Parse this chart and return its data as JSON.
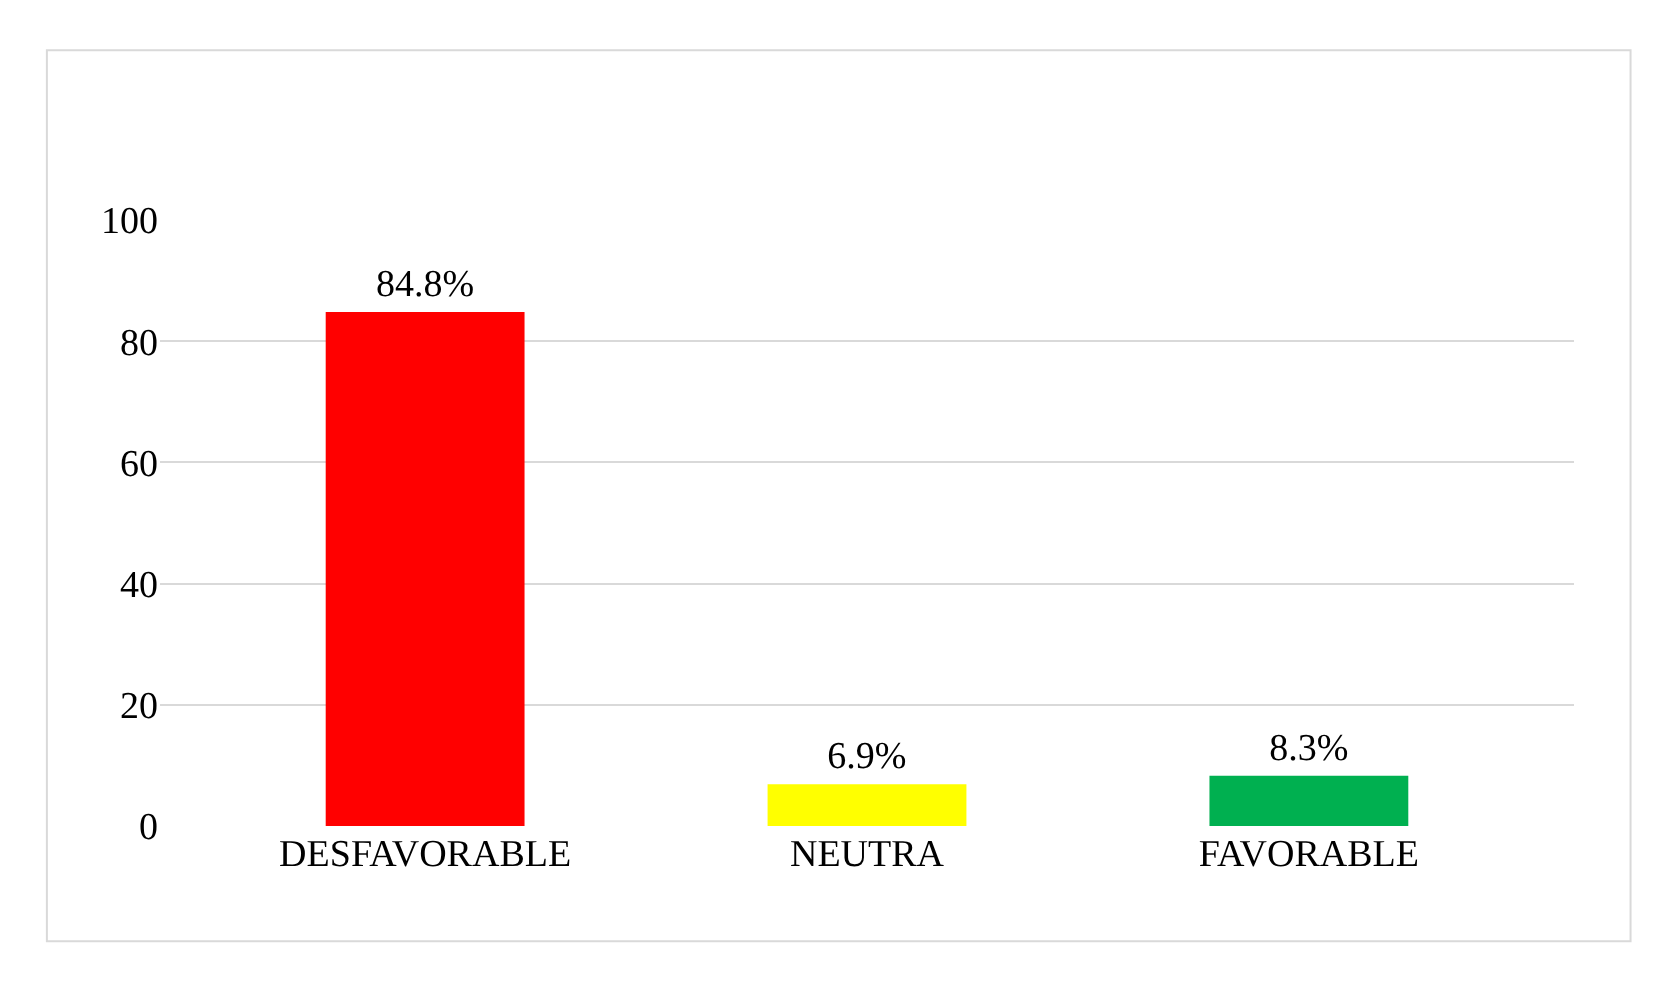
{
  "chart_data": {
    "type": "bar",
    "categories": [
      "DESFAVORABLE",
      "NEUTRA",
      "FAVORABLE"
    ],
    "values": [
      84.8,
      6.9,
      8.3
    ],
    "value_labels": [
      "84.8%",
      "6.9%",
      "8.3%"
    ],
    "colors": [
      "#ff0000",
      "#ffff00",
      "#00b050"
    ],
    "ylim": [
      0,
      100
    ],
    "yticks": [
      0,
      20,
      40,
      60,
      80,
      100
    ],
    "grid": "y",
    "legend": false
  }
}
